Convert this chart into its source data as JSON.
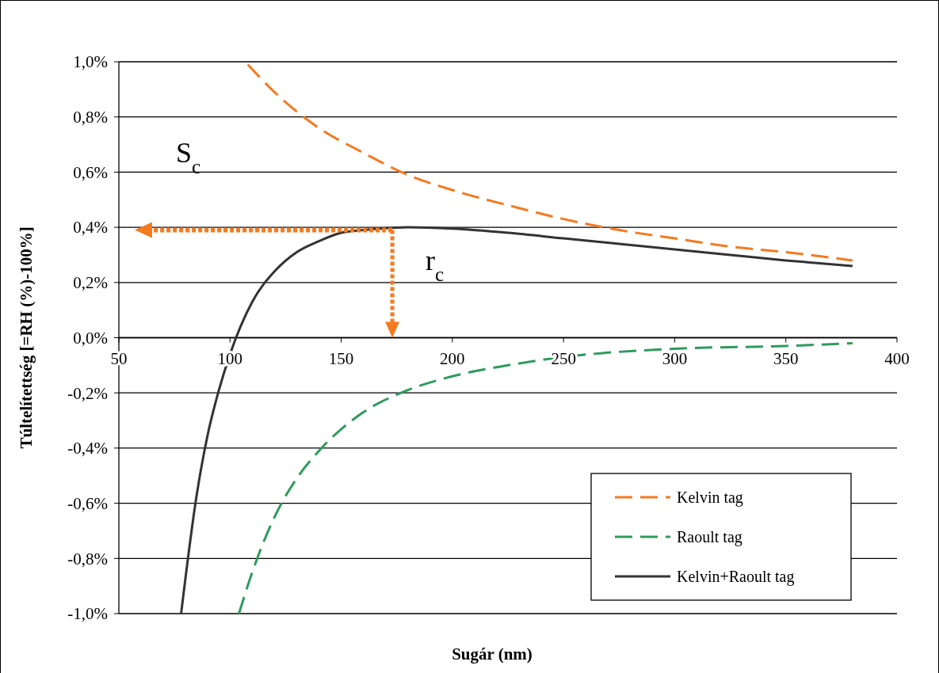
{
  "chart_data": {
    "type": "line",
    "xlabel": "Sugár (nm)",
    "ylabel": "Túltelítettség [=RH (%)-100%]",
    "xlim": [
      50,
      400
    ],
    "xticks": [
      50,
      100,
      150,
      200,
      250,
      300,
      350,
      400
    ],
    "ylim": [
      -1,
      1
    ],
    "yticks": [
      {
        "value": -1,
        "label": "-1,0%"
      },
      {
        "value": -0.8,
        "label": "-0,8%"
      },
      {
        "value": -0.6,
        "label": "-0,6%"
      },
      {
        "value": -0.4,
        "label": "-0,4%"
      },
      {
        "value": -0.2,
        "label": "-0,2%"
      },
      {
        "value": 0,
        "label": "0,0%"
      },
      {
        "value": 0.2,
        "label": "0,2%"
      },
      {
        "value": 0.4,
        "label": "0,4%"
      },
      {
        "value": 0.6,
        "label": "0,6%"
      },
      {
        "value": 0.8,
        "label": "0,8%"
      },
      {
        "value": 1,
        "label": "1,0%"
      }
    ],
    "grid": "y",
    "legend": "bottom right",
    "marker": "none",
    "series": [
      {
        "name": "Kelvin tag",
        "color": "#f47a20",
        "line_style": "dashed",
        "x": [
          108,
          120,
          140,
          160,
          180,
          200,
          225,
          250,
          275,
          300,
          325,
          350,
          380
        ],
        "values": [
          0.99,
          0.89,
          0.76,
          0.67,
          0.59,
          0.535,
          0.48,
          0.43,
          0.39,
          0.36,
          0.33,
          0.31,
          0.28
        ]
      },
      {
        "name": "Raoult tag",
        "color": "#2e9b5e",
        "line_style": "dashed",
        "x": [
          104,
          110,
          120,
          130,
          140,
          160,
          180,
          200,
          225,
          250,
          300,
          350,
          380
        ],
        "values": [
          -1.0,
          -0.85,
          -0.65,
          -0.51,
          -0.41,
          -0.27,
          -0.19,
          -0.14,
          -0.1,
          -0.07,
          -0.04,
          -0.03,
          -0.02
        ]
      },
      {
        "name": "Kelvin+Raoult tag",
        "color": "#333333",
        "line_style": "solid",
        "x": [
          78,
          85,
          90,
          95,
          100,
          110,
          120,
          130,
          140,
          150,
          160,
          180,
          200,
          225,
          250,
          275,
          300,
          325,
          350,
          380
        ],
        "values": [
          -1.0,
          -0.57,
          -0.35,
          -0.19,
          -0.06,
          0.13,
          0.24,
          0.31,
          0.35,
          0.38,
          0.39,
          0.4,
          0.395,
          0.38,
          0.36,
          0.34,
          0.32,
          0.3,
          0.28,
          0.26
        ]
      }
    ],
    "annotations": [
      "S$_{c}$",
      {
        "text": "r$_{c}$",
        "x": 173,
        "y": 0.39
      }
    ]
  }
}
